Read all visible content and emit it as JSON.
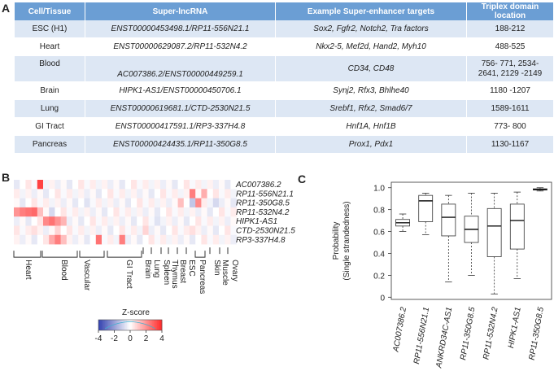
{
  "panels": {
    "a": "A",
    "b": "B",
    "c": "C"
  },
  "table": {
    "headers": [
      "Cell/Tissue",
      "Super-lncRNA",
      "Example Super-enhancer targets",
      "Triplex domain location"
    ],
    "rows": [
      [
        "ESC (H1)",
        "ENST00000453498.1/RP11-556N21.1",
        "Sox2, Fgfr2, Notch2, Tra factors",
        "188-212"
      ],
      [
        "Heart",
        "ENST00000629087.2/RP11-532N4.2",
        "Nkx2-5, Mef2d, Hand2, Myh10",
        "488-525"
      ],
      [
        "Blood",
        "AC007386.2/ENST00000449259.1",
        "CD34, CD48",
        "756- 771, 2534-  2641, 2129 -2149"
      ],
      [
        "Brain",
        "HIPK1-AS1/ENST00000450706.1",
        "Synj2, Rfx3, Bhlhe40",
        "1180 -1207"
      ],
      [
        "Lung",
        "ENST00000619681.1/CTD-2530N21.5",
        "Srebf1, Rfx2, Smad6/7",
        "1589-1611"
      ],
      [
        "GI Tract",
        "ENST00000417591.1/RP3-337H4.8",
        "Hnf1A, Hnf1B",
        "773- 800"
      ],
      [
        "Pancreas",
        "ENST00000424435.1/RP11-350G8.5",
        "Prox1, Pdx1",
        "1130-1167"
      ]
    ]
  },
  "heatmap": {
    "row_labels": [
      "AC007386.2",
      "RP11-556N21.1",
      "RP11-350G8.5",
      "RP11-532N4.2",
      "HIPK1-AS1",
      "CTD-2530N21.5",
      "RP3-337H4.8"
    ],
    "tissue_labels": [
      "Heart",
      "Blood",
      "Vascular",
      "GI Tract",
      "Brain",
      "Lung",
      "Spleen",
      "Thymus",
      "Breast",
      "ESC",
      "Pancreas",
      "Skin",
      "Muscle",
      "Ovary"
    ],
    "colorbar": {
      "title": "Z-score",
      "ticks": [
        "-4",
        "-2",
        "0",
        "2",
        "4"
      ]
    }
  },
  "chart_data": {
    "type": "box",
    "ylabel": "Probability\n(Single strandedness)",
    "ylim": [
      0,
      1.0
    ],
    "yticks": [
      "0",
      "0.2",
      "0.4",
      "0.6",
      "0.8",
      "1.0"
    ],
    "categories": [
      "AC007386.2",
      "RP11-556N21.1",
      "ANKRD34C-AS1",
      "RP11-350G8.5",
      "RP11-532N4.2",
      "HIPK1-AS1",
      "RP11-350G8.5"
    ],
    "boxes": [
      {
        "min": 0.6,
        "q1": 0.65,
        "median": 0.68,
        "q3": 0.71,
        "max": 0.76
      },
      {
        "min": 0.57,
        "q1": 0.69,
        "median": 0.88,
        "q3": 0.93,
        "max": 0.95
      },
      {
        "min": 0.14,
        "q1": 0.56,
        "median": 0.73,
        "q3": 0.85,
        "max": 0.93
      },
      {
        "min": 0.2,
        "q1": 0.5,
        "median": 0.62,
        "q3": 0.74,
        "max": 0.95
      },
      {
        "min": 0.03,
        "q1": 0.37,
        "median": 0.65,
        "q3": 0.81,
        "max": 0.95
      },
      {
        "min": 0.17,
        "q1": 0.44,
        "median": 0.7,
        "q3": 0.85,
        "max": 0.96
      },
      {
        "min": 0.97,
        "q1": 0.98,
        "median": 0.985,
        "q3": 0.99,
        "max": 1.0
      }
    ]
  }
}
